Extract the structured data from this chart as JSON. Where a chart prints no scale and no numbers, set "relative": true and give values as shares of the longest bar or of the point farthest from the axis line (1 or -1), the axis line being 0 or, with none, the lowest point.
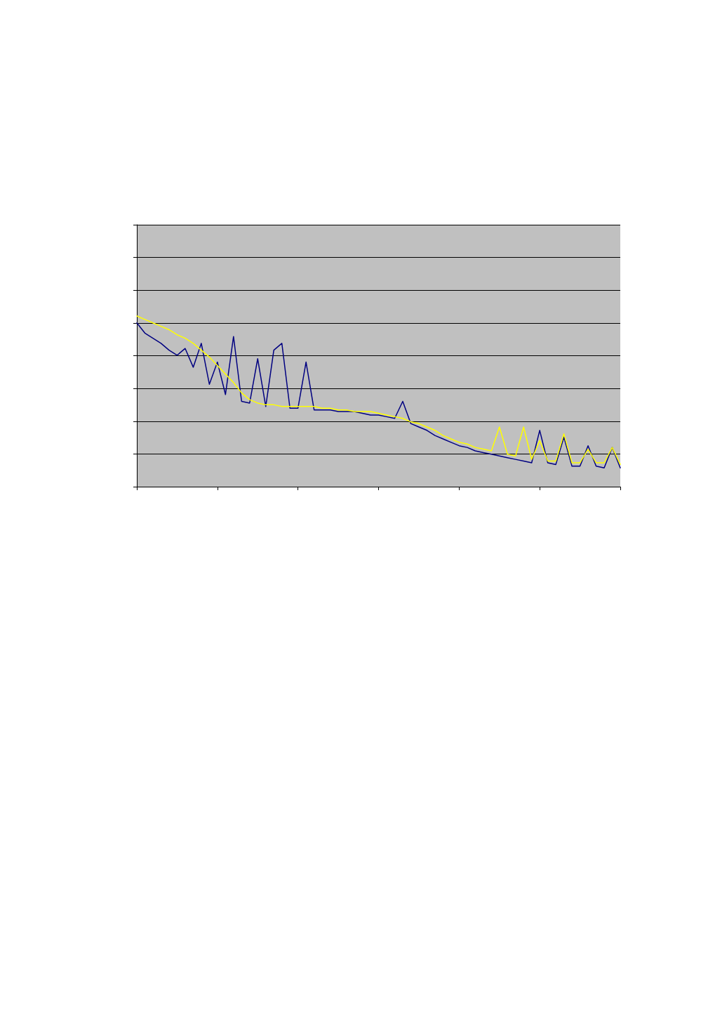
{
  "chart_data": {
    "type": "line",
    "relative": true,
    "grid": "y",
    "marker": "none",
    "line_style": "solid",
    "categories": [
      null,
      null,
      null,
      null,
      null,
      null,
      null,
      null,
      null,
      null,
      null,
      null,
      null,
      null,
      null,
      null,
      null,
      null,
      null,
      null,
      null,
      null,
      null,
      null,
      null,
      null,
      null,
      null,
      null,
      null,
      null,
      null,
      null,
      null,
      null,
      null,
      null,
      null,
      null,
      null,
      null,
      null,
      null,
      null,
      null,
      null,
      null,
      null,
      null,
      null,
      null,
      null,
      null,
      null,
      null,
      null,
      null,
      null,
      null,
      null,
      null
    ],
    "series": [
      {
        "color": "#000080",
        "values": [
          0.96,
          0.9,
          0.87,
          0.84,
          0.8,
          0.77,
          0.81,
          0.7,
          0.84,
          0.6,
          0.73,
          0.54,
          0.88,
          0.5,
          0.49,
          0.75,
          0.47,
          0.8,
          0.84,
          0.46,
          0.46,
          0.73,
          0.45,
          0.45,
          0.45,
          0.44,
          0.44,
          0.44,
          0.43,
          0.42,
          0.42,
          0.41,
          0.4,
          0.5,
          0.37,
          0.35,
          0.33,
          0.3,
          0.28,
          0.26,
          0.24,
          0.23,
          0.21,
          0.2,
          0.19,
          0.18,
          0.17,
          0.16,
          0.15,
          0.14,
          0.33,
          0.14,
          0.13,
          0.29,
          0.12,
          0.12,
          0.24,
          0.12,
          0.11,
          0.23,
          0.11
        ]
      },
      {
        "color": "#ffff00",
        "values": [
          1.0,
          0.98,
          0.96,
          0.94,
          0.92,
          0.89,
          0.87,
          0.84,
          0.8,
          0.76,
          0.71,
          0.66,
          0.61,
          0.55,
          0.51,
          0.49,
          0.48,
          0.48,
          0.47,
          0.47,
          0.47,
          0.47,
          0.47,
          0.46,
          0.46,
          0.45,
          0.45,
          0.44,
          0.44,
          0.44,
          0.43,
          0.42,
          0.41,
          0.4,
          0.38,
          0.37,
          0.35,
          0.33,
          0.3,
          0.28,
          0.26,
          0.25,
          0.23,
          0.22,
          0.21,
          0.35,
          0.19,
          0.18,
          0.35,
          0.16,
          0.27,
          0.15,
          0.15,
          0.31,
          0.14,
          0.14,
          0.22,
          0.14,
          0.14,
          0.23,
          0.13
        ]
      }
    ]
  }
}
